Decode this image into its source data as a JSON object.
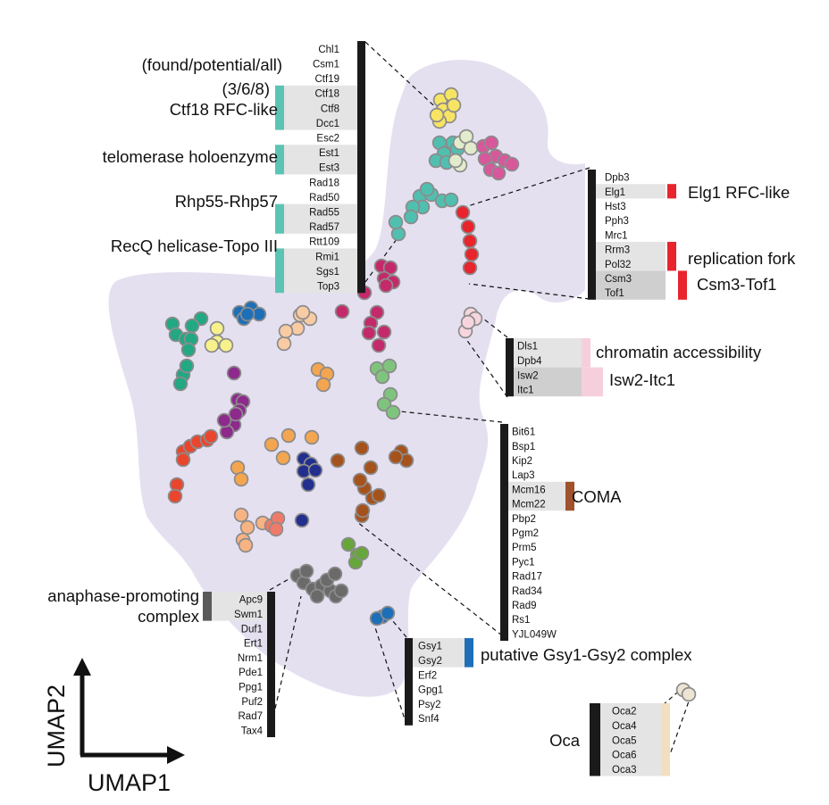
{
  "axes": {
    "x_label": "UMAP1",
    "y_label": "UMAP2"
  },
  "groups": {
    "top_left": {
      "genes": [
        "Chl1",
        "Csm1",
        "Ctf19",
        "Ctf18",
        "Ctf8",
        "Dcc1",
        "Esc2",
        "Est1",
        "Est3",
        "Rad18",
        "Rad50",
        "Rad55",
        "Rad57",
        "Rtt109",
        "Rmi1",
        "Sgs1",
        "Top3"
      ],
      "header": "(found/potential/all)",
      "count": "(3/6/8)",
      "complexes": [
        "Ctf18 RFC-like",
        "telomerase holoenzyme",
        "Rhp55-Rhp57",
        "RecQ helicase-Topo III"
      ],
      "color": "#5cc4b4"
    },
    "top_right": {
      "genes": [
        "Dpb3",
        "Elg1",
        "Hst3",
        "Pph3",
        "Mrc1",
        "Rrm3",
        "Pol32",
        "Csm3",
        "Tof1"
      ],
      "complexes": [
        "Elg1 RFC-like",
        "replication fork",
        "Csm3-Tof1"
      ],
      "color": "#e8242c"
    },
    "chromatin": {
      "genes": [
        "Dls1",
        "Dpb4",
        "Isw2",
        "Itc1"
      ],
      "complexes": [
        "chromatin accessibility",
        "Isw2-Itc1"
      ],
      "color": "#f6cfdc"
    },
    "coma": {
      "genes": [
        "Bit61",
        "Bsp1",
        "Kip2",
        "Lap3",
        "Mcm16",
        "Mcm22",
        "Pbp2",
        "Pgm2",
        "Prm5",
        "Pyc1",
        "Rad17",
        "Rad34",
        "Rad9",
        "Rs1",
        "YJL049W"
      ],
      "complexes": [
        "COMA"
      ],
      "color": "#a0522d"
    },
    "apc": {
      "genes": [
        "Apc9",
        "Swm1",
        "Duf1",
        "Ert1",
        "Nrm1",
        "Pde1",
        "Ppg1",
        "Puf2",
        "Rad7",
        "Tax4"
      ],
      "complexes": [
        "anaphase-promoting",
        "complex"
      ],
      "color": "#5a5a5a"
    },
    "gsy": {
      "genes": [
        "Gsy1",
        "Gsy2",
        "Erf2",
        "Gpg1",
        "Psy2",
        "Snf4"
      ],
      "complexes": [
        "putative Gsy1-Gsy2 complex"
      ],
      "color": "#1f6fb8"
    },
    "oca": {
      "genes": [
        "Oca2",
        "Oca4",
        "Oca5",
        "Oca6",
        "Oca3"
      ],
      "complexes": [
        "Oca"
      ],
      "color": "#f1dfc0"
    }
  },
  "cluster_colors": {
    "yellow": "#f7e462",
    "teal": "#50bfb0",
    "cream": "#e2eccc",
    "pink": "#d7589b",
    "magenta": "#c42a6a",
    "red": "#e8242c",
    "lightpink": "#f6d5de",
    "green": "#22a883",
    "lightyellow": "#f7f18c",
    "blue": "#1e6fb7",
    "peach": "#f9cba3",
    "purple": "#8d2a8c",
    "orange": "#f4a550",
    "lightgreen": "#7fc47d",
    "redorange": "#e9462d",
    "brown": "#a6521c",
    "navy": "#232f8e",
    "lightorange": "#f8b383",
    "salmon": "#f07a6a",
    "leaf": "#66a63a",
    "gray": "#6a6a6a",
    "gsyblue": "#1f6fb8",
    "beige": "#ede4d3"
  }
}
